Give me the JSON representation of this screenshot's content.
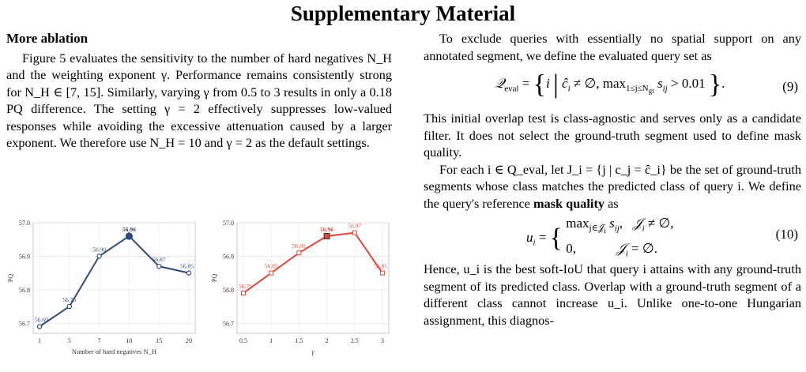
{
  "title": "Supplementary Material",
  "left": {
    "section": "More ablation",
    "para": "Figure 5 evaluates the sensitivity to the number of hard negatives N_H and the weighting exponent γ. Performance remains consistently strong for N_H ∈ [7, 15]. Similarly, varying γ from 0.5 to 3 results in only a 0.18 PQ difference. The setting γ = 2 effectively suppresses low-valued responses while avoiding the excessive attenuation caused by a larger exponent. We therefore use N_H = 10 and γ = 2 as the default settings."
  },
  "right": {
    "para1": "To exclude queries with essentially no spatial support on any annotated segment, we define the evaluated query set as",
    "eq9_num": "(9)",
    "para2": "This initial overlap test is class-agnostic and serves only as a candidate filter. It does not select the ground-truth segment used to define mask quality.",
    "para3_a": "For each i ∈ Q_eval, let J_i = {j | c_j = ĉ_i} be the set of ground-truth segments whose class matches the predicted class of query i. We define the query's reference ",
    "para3_bold": "mask quality",
    "para3_b": " as",
    "eq10_num": "(10)",
    "para4": "Hence, u_i is the best soft-IoU that query i attains with any ground-truth segment of its predicted class. Overlap with a ground-truth segment of a different class cannot increase u_i. Unlike one-to-one Hungarian assignment, this diagnos-"
  },
  "chart_data": [
    {
      "type": "line",
      "x": [
        1,
        5,
        7,
        10,
        15,
        20
      ],
      "x_tick_labels": [
        "1",
        "5",
        "7",
        "10",
        "15",
        "20"
      ],
      "values": [
        56.69,
        56.75,
        56.9,
        56.96,
        56.87,
        56.85
      ],
      "value_labels": [
        "56.69",
        "56.75",
        "56.90",
        "56.96",
        "56.87",
        "56.85"
      ],
      "highlight_index": 3,
      "xlabel": "Number of hard negatives N_H",
      "ylabel": "PQ",
      "ylim": [
        56.67,
        57.0
      ],
      "y_ticks": [
        "56.7",
        "56.8",
        "56.9",
        "57.0"
      ],
      "color": "#2e4a7a",
      "grid": true
    },
    {
      "type": "line",
      "x": [
        0.5,
        1,
        1.5,
        2,
        2.5,
        3
      ],
      "x_tick_labels": [
        "0.5",
        "1",
        "1.5",
        "2",
        "2.5",
        "3"
      ],
      "values": [
        56.79,
        56.85,
        56.91,
        56.96,
        56.97,
        56.85
      ],
      "value_labels": [
        "56.79",
        "56.85",
        "56.91",
        "56.96",
        "56.97",
        "56.85"
      ],
      "highlight_index": 3,
      "xlabel": "γ",
      "ylabel": "PQ",
      "ylim": [
        56.67,
        57.0
      ],
      "y_ticks": [
        "56.7",
        "56.8",
        "56.9",
        "57.0"
      ],
      "color": "#e0483a",
      "grid": true
    }
  ]
}
